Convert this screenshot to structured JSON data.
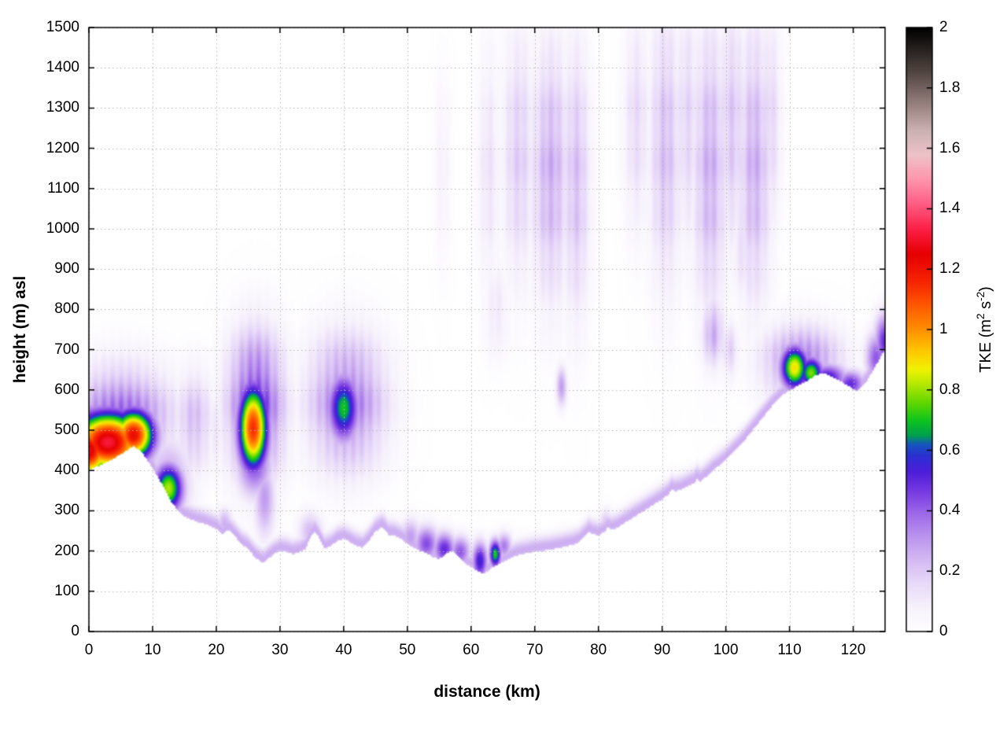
{
  "figure": {
    "background": "#ffffff",
    "grid_color": "#b5b5b5",
    "border_color": "#000000"
  },
  "chart_data": {
    "type": "heatmap",
    "title": "",
    "xlabel": "distance (km)",
    "ylabel": "height (m) asl",
    "cblabel": {
      "pre": "TKE (m",
      "sup1": "2",
      "mid": " s",
      "sup2": "-2",
      "post": ")"
    },
    "x_range": [
      0,
      125
    ],
    "y_range": [
      0,
      1500
    ],
    "cb_range": [
      0,
      2
    ],
    "grid": true,
    "legend_position": "right-colorbar",
    "x_tick_values": [
      0,
      10,
      20,
      30,
      40,
      50,
      60,
      70,
      80,
      90,
      100,
      110,
      120
    ],
    "x_tick_labels": [
      "0",
      "10",
      "20",
      "30",
      "40",
      "50",
      "60",
      "70",
      "80",
      "90",
      "100",
      "110",
      "120"
    ],
    "y_tick_values": [
      0,
      100,
      200,
      300,
      400,
      500,
      600,
      700,
      800,
      900,
      1000,
      1100,
      1200,
      1300,
      1400,
      1500
    ],
    "y_tick_labels": [
      "0",
      "100",
      "200",
      "300",
      "400",
      "500",
      "600",
      "700",
      "800",
      "900",
      "1000",
      "1100",
      "1200",
      "1300",
      "1400",
      "1500"
    ],
    "cb_tick_values": [
      0,
      0.2,
      0.4,
      0.6,
      0.8,
      1,
      1.2,
      1.4,
      1.6,
      1.8,
      2
    ],
    "cb_tick_labels": [
      "0",
      "0.2",
      "0.4",
      "0.6",
      "0.8",
      "1",
      "1.2",
      "1.4",
      "1.6",
      "1.8",
      "2"
    ],
    "colormap_stops": [
      [
        0.0,
        "#ffffff"
      ],
      [
        0.08,
        "#f7f2fc"
      ],
      [
        0.16,
        "#e8daf8"
      ],
      [
        0.24,
        "#d4b9f3"
      ],
      [
        0.32,
        "#ba92ee"
      ],
      [
        0.4,
        "#9a64e8"
      ],
      [
        0.47,
        "#7438e1"
      ],
      [
        0.53,
        "#4e1ed9"
      ],
      [
        0.58,
        "#2d2ed2"
      ],
      [
        0.62,
        "#1655c0"
      ],
      [
        0.65,
        "#00a050"
      ],
      [
        0.7,
        "#0fc41e"
      ],
      [
        0.76,
        "#63d800"
      ],
      [
        0.82,
        "#b4e800"
      ],
      [
        0.87,
        "#f2f200"
      ],
      [
        0.93,
        "#ffc800"
      ],
      [
        1.0,
        "#ff9000"
      ],
      [
        1.08,
        "#ff5a00"
      ],
      [
        1.16,
        "#f62400"
      ],
      [
        1.25,
        "#e60000"
      ],
      [
        1.33,
        "#fb1e44"
      ],
      [
        1.42,
        "#ff5f86"
      ],
      [
        1.5,
        "#ff97ae"
      ],
      [
        1.58,
        "#eec3c8"
      ],
      [
        1.66,
        "#ccb2b2"
      ],
      [
        1.75,
        "#957f7c"
      ],
      [
        1.85,
        "#544743"
      ],
      [
        2.0,
        "#000000"
      ]
    ],
    "terrain_profile_km_m": [
      [
        0,
        400
      ],
      [
        2,
        415
      ],
      [
        4,
        430
      ],
      [
        6,
        450
      ],
      [
        7,
        460
      ],
      [
        8,
        450
      ],
      [
        9,
        430
      ],
      [
        10,
        405
      ],
      [
        11,
        380
      ],
      [
        12,
        350
      ],
      [
        13,
        320
      ],
      [
        14,
        300
      ],
      [
        15,
        285
      ],
      [
        16,
        278
      ],
      [
        17,
        272
      ],
      [
        18,
        268
      ],
      [
        19,
        262
      ],
      [
        20,
        255
      ],
      [
        21,
        240
      ],
      [
        21.5,
        248
      ],
      [
        22,
        252
      ],
      [
        23,
        235
      ],
      [
        24,
        215
      ],
      [
        25,
        205
      ],
      [
        26,
        185
      ],
      [
        27,
        172
      ],
      [
        27.5,
        170
      ],
      [
        28,
        178
      ],
      [
        29,
        192
      ],
      [
        30,
        200
      ],
      [
        31,
        198
      ],
      [
        32,
        192
      ],
      [
        33,
        196
      ],
      [
        34,
        205
      ],
      [
        35,
        240
      ],
      [
        35.5,
        248
      ],
      [
        36,
        235
      ],
      [
        37,
        205
      ],
      [
        38,
        212
      ],
      [
        39,
        225
      ],
      [
        40,
        230
      ],
      [
        41,
        222
      ],
      [
        42,
        212
      ],
      [
        43,
        208
      ],
      [
        44,
        225
      ],
      [
        45,
        248
      ],
      [
        46,
        258
      ],
      [
        46.5,
        252
      ],
      [
        47,
        240
      ],
      [
        48,
        238
      ],
      [
        49,
        230
      ],
      [
        50,
        218
      ],
      [
        51,
        208
      ],
      [
        52,
        200
      ],
      [
        53,
        195
      ],
      [
        54,
        185
      ],
      [
        55,
        180
      ],
      [
        56,
        192
      ],
      [
        57,
        200
      ],
      [
        57.5,
        195
      ],
      [
        58,
        185
      ],
      [
        59,
        170
      ],
      [
        60,
        160
      ],
      [
        61,
        150
      ],
      [
        62,
        142
      ],
      [
        63,
        155
      ],
      [
        64,
        165
      ],
      [
        65,
        172
      ],
      [
        66,
        180
      ],
      [
        67,
        188
      ],
      [
        68,
        192
      ],
      [
        69,
        195
      ],
      [
        70,
        198
      ],
      [
        71,
        200
      ],
      [
        72,
        202
      ],
      [
        73,
        205
      ],
      [
        74,
        208
      ],
      [
        75,
        212
      ],
      [
        76,
        215
      ],
      [
        77,
        222
      ],
      [
        78,
        238
      ],
      [
        78.5,
        248
      ],
      [
        79,
        242
      ],
      [
        80,
        238
      ],
      [
        81,
        248
      ],
      [
        81.5,
        258
      ],
      [
        82,
        252
      ],
      [
        83,
        258
      ],
      [
        84,
        268
      ],
      [
        85,
        278
      ],
      [
        86,
        288
      ],
      [
        87,
        298
      ],
      [
        88,
        308
      ],
      [
        89,
        318
      ],
      [
        90,
        328
      ],
      [
        91,
        340
      ],
      [
        91.5,
        352
      ],
      [
        92,
        348
      ],
      [
        93,
        352
      ],
      [
        94,
        360
      ],
      [
        95,
        368
      ],
      [
        95.5,
        378
      ],
      [
        96,
        372
      ],
      [
        97,
        385
      ],
      [
        98,
        400
      ],
      [
        99,
        412
      ],
      [
        100,
        425
      ],
      [
        101,
        442
      ],
      [
        102,
        458
      ],
      [
        103,
        475
      ],
      [
        104,
        495
      ],
      [
        105,
        515
      ],
      [
        106,
        535
      ],
      [
        107,
        555
      ],
      [
        108,
        572
      ],
      [
        109,
        588
      ],
      [
        110,
        598
      ],
      [
        111,
        608
      ],
      [
        112,
        615
      ],
      [
        113,
        625
      ],
      [
        114,
        635
      ],
      [
        115,
        642
      ],
      [
        116,
        638
      ],
      [
        117,
        630
      ],
      [
        118,
        622
      ],
      [
        119,
        612
      ],
      [
        120,
        602
      ],
      [
        120.5,
        598
      ],
      [
        121,
        602
      ],
      [
        122,
        618
      ],
      [
        123,
        645
      ],
      [
        124,
        672
      ],
      [
        125,
        700
      ]
    ],
    "tke_features": [
      {
        "x": 3.0,
        "y": 470,
        "amp": 1.32,
        "sx": 4.2,
        "sy": 55
      },
      {
        "x": 0.0,
        "y": 450,
        "amp": 1.28,
        "sx": 2.5,
        "sy": 50
      },
      {
        "x": 7.0,
        "y": 488,
        "amp": 1.22,
        "sx": 2.4,
        "sy": 46
      },
      {
        "x": 5.0,
        "y": 525,
        "amp": 0.45,
        "sx": 6.0,
        "sy": 95,
        "m": 1
      },
      {
        "x": 12.5,
        "y": 355,
        "amp": 0.82,
        "sx": 1.7,
        "sy": 45
      },
      {
        "x": 12.5,
        "y": 370,
        "amp": 0.3,
        "sx": 2.6,
        "sy": 80
      },
      {
        "x": 16.5,
        "y": 520,
        "amp": 0.26,
        "sx": 2.2,
        "sy": 95,
        "m": 1
      },
      {
        "x": 20.0,
        "y": 500,
        "amp": 0.14,
        "sx": 1.5,
        "sy": 80,
        "m": 1
      },
      {
        "x": 25.8,
        "y": 505,
        "amp": 1.15,
        "sx": 1.7,
        "sy": 78
      },
      {
        "x": 26.2,
        "y": 560,
        "amp": 0.55,
        "sx": 3.2,
        "sy": 130,
        "m": 1
      },
      {
        "x": 26.0,
        "y": 420,
        "amp": 0.45,
        "sx": 2.0,
        "sy": 60
      },
      {
        "x": 27.6,
        "y": 330,
        "amp": 0.3,
        "sx": 1.2,
        "sy": 70
      },
      {
        "x": 21.3,
        "y": 268,
        "amp": 0.26,
        "sx": 0.9,
        "sy": 28
      },
      {
        "x": 34.8,
        "y": 248,
        "amp": 0.24,
        "sx": 1.4,
        "sy": 35
      },
      {
        "x": 40.0,
        "y": 555,
        "amp": 0.7,
        "sx": 1.8,
        "sy": 62
      },
      {
        "x": 40.5,
        "y": 570,
        "amp": 0.42,
        "sx": 4.5,
        "sy": 120,
        "m": 1
      },
      {
        "x": 44.8,
        "y": 545,
        "amp": 0.24,
        "sx": 1.5,
        "sy": 80,
        "m": 1
      },
      {
        "x": 50.5,
        "y": 235,
        "amp": 0.3,
        "sx": 1.2,
        "sy": 32
      },
      {
        "x": 53.0,
        "y": 218,
        "amp": 0.44,
        "sx": 1.4,
        "sy": 32
      },
      {
        "x": 55.8,
        "y": 205,
        "amp": 0.5,
        "sx": 1.3,
        "sy": 30
      },
      {
        "x": 58.3,
        "y": 198,
        "amp": 0.42,
        "sx": 1.2,
        "sy": 28
      },
      {
        "x": 61.4,
        "y": 175,
        "amp": 0.56,
        "sx": 0.9,
        "sy": 34
      },
      {
        "x": 63.8,
        "y": 192,
        "amp": 0.72,
        "sx": 0.7,
        "sy": 26
      },
      {
        "x": 65.2,
        "y": 212,
        "amp": 0.36,
        "sx": 0.9,
        "sy": 24
      },
      {
        "x": 74.2,
        "y": 608,
        "amp": 0.3,
        "sx": 0.6,
        "sy": 36
      },
      {
        "x": 81.2,
        "y": 268,
        "amp": 0.22,
        "sx": 0.8,
        "sy": 26
      },
      {
        "x": 64.0,
        "y": 800,
        "amp": 0.13,
        "sx": 1.5,
        "sy": 90,
        "m": 1
      },
      {
        "x": 98.0,
        "y": 745,
        "amp": 0.3,
        "sx": 1.3,
        "sy": 68,
        "m": 1
      },
      {
        "x": 100.6,
        "y": 700,
        "amp": 0.2,
        "sx": 1.0,
        "sy": 55,
        "m": 1
      },
      {
        "x": 110.8,
        "y": 655,
        "amp": 0.9,
        "sx": 1.6,
        "sy": 40
      },
      {
        "x": 113.4,
        "y": 642,
        "amp": 0.78,
        "sx": 1.4,
        "sy": 30
      },
      {
        "x": 116.0,
        "y": 630,
        "amp": 0.55,
        "sx": 2.2,
        "sy": 26
      },
      {
        "x": 119.6,
        "y": 615,
        "amp": 0.5,
        "sx": 1.6,
        "sy": 24
      },
      {
        "x": 112.0,
        "y": 665,
        "amp": 0.4,
        "sx": 4.5,
        "sy": 70,
        "m": 1
      },
      {
        "x": 123.6,
        "y": 680,
        "amp": 0.42,
        "sx": 1.2,
        "sy": 45
      },
      {
        "x": 125.0,
        "y": 720,
        "amp": 0.5,
        "sx": 1.2,
        "sy": 50
      },
      {
        "x": 62.8,
        "y": 1150,
        "amp": 0.15,
        "sx": 1.3,
        "sy": 220,
        "m": 1
      },
      {
        "x": 67.5,
        "y": 1180,
        "amp": 0.22,
        "sx": 1.9,
        "sy": 230,
        "m": 1
      },
      {
        "x": 72.5,
        "y": 1140,
        "amp": 0.3,
        "sx": 2.3,
        "sy": 230,
        "m": 1
      },
      {
        "x": 76.5,
        "y": 1120,
        "amp": 0.26,
        "sx": 1.6,
        "sy": 250,
        "m": 1
      },
      {
        "x": 73.0,
        "y": 1000,
        "amp": 0.16,
        "sx": 2.5,
        "sy": 90,
        "m": 1
      },
      {
        "x": 55.5,
        "y": 1150,
        "amp": 0.09,
        "sx": 1.0,
        "sy": 180,
        "m": 1
      },
      {
        "x": 86.0,
        "y": 1260,
        "amp": 0.18,
        "sx": 1.5,
        "sy": 200,
        "m": 1
      },
      {
        "x": 90.5,
        "y": 1200,
        "amp": 0.26,
        "sx": 1.9,
        "sy": 250,
        "m": 1
      },
      {
        "x": 94.0,
        "y": 1260,
        "amp": 0.2,
        "sx": 1.5,
        "sy": 220,
        "m": 1
      },
      {
        "x": 97.5,
        "y": 1150,
        "amp": 0.3,
        "sx": 2.0,
        "sy": 260,
        "m": 1
      },
      {
        "x": 101.0,
        "y": 1250,
        "amp": 0.24,
        "sx": 1.6,
        "sy": 220,
        "m": 1
      },
      {
        "x": 104.5,
        "y": 1160,
        "amp": 0.3,
        "sx": 2.0,
        "sy": 250,
        "m": 1
      },
      {
        "x": 107.0,
        "y": 1260,
        "amp": 0.2,
        "sx": 1.2,
        "sy": 200,
        "m": 1
      },
      {
        "x": 97.0,
        "y": 950,
        "amp": 0.2,
        "sx": 1.6,
        "sy": 90,
        "m": 1
      },
      {
        "x": 103.0,
        "y": 950,
        "amp": 0.18,
        "sx": 1.6,
        "sy": 90,
        "m": 1
      }
    ],
    "surface_layer": {
      "amp": 0.26,
      "sigma": 20,
      "offset": 10
    },
    "striation_wavelength_km": 1.35
  }
}
